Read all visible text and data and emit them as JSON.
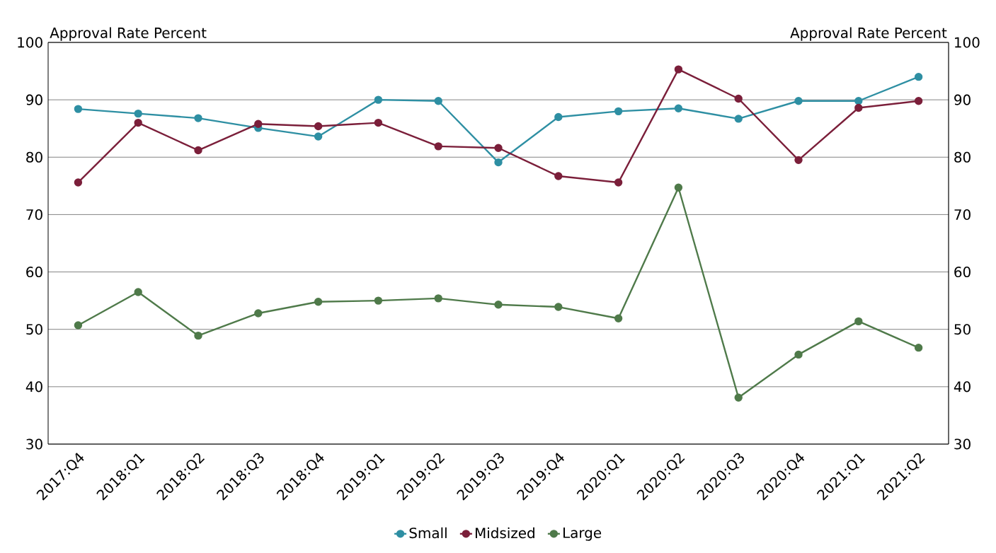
{
  "chart_data": {
    "type": "line",
    "ylabel": "Approval Rate Percent",
    "y2label": "Approval Rate Percent",
    "categories": [
      "2017:Q4",
      "2018:Q1",
      "2018:Q2",
      "2018:Q3",
      "2018:Q4",
      "2019:Q1",
      "2019:Q2",
      "2019:Q3",
      "2019:Q4",
      "2020:Q1",
      "2020:Q2",
      "2020:Q3",
      "2020:Q4",
      "2021:Q1",
      "2021:Q2"
    ],
    "series": [
      {
        "name": "Small",
        "color": "#2e8fa3",
        "values": [
          88.4,
          87.6,
          86.8,
          85.1,
          83.6,
          90,
          89.8,
          79.1,
          87,
          88,
          88.5,
          86.7,
          89.8,
          89.8,
          94
        ]
      },
      {
        "name": "Midsized",
        "color": "#7b1f3a",
        "values": [
          75.6,
          86,
          81.2,
          85.8,
          85.4,
          86,
          81.9,
          81.6,
          76.7,
          75.6,
          95.3,
          90.2,
          79.5,
          88.6,
          89.8
        ]
      },
      {
        "name": "Large",
        "color": "#4f7a4a",
        "values": [
          50.7,
          56.5,
          48.9,
          52.8,
          54.8,
          55,
          55.4,
          54.3,
          53.9,
          51.9,
          74.7,
          38.1,
          45.6,
          51.4,
          46.8
        ]
      }
    ],
    "ylim": [
      30,
      100
    ],
    "yticks": [
      30,
      40,
      50,
      60,
      70,
      80,
      90,
      100
    ],
    "y2lim": [
      30,
      100
    ],
    "y2ticks": [
      30,
      40,
      50,
      60,
      70,
      80,
      90,
      100
    ],
    "grid": "y",
    "legend": "bottom",
    "marker": "circle",
    "line_style": "solid"
  }
}
